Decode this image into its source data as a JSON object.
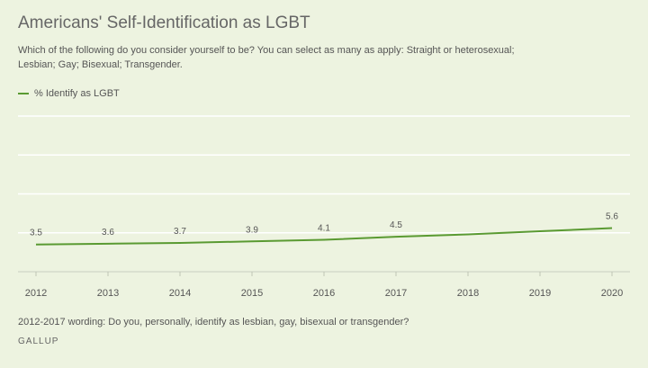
{
  "title": "Americans' Self-Identification as LGBT",
  "subtitle": "Which of the following do you consider yourself to be? You can select as many as apply: Straight or heterosexual; Lesbian; Gay; Bisexual; Transgender.",
  "note": "2012-2017 wording: Do you, personally, identify as lesbian, gay, bisexual or transgender?",
  "source": "GALLUP",
  "colors": {
    "line": "#5a9a32",
    "grid": "#ffffff",
    "text": "#555555"
  },
  "chart_data": {
    "type": "line",
    "x": [
      "2012",
      "2013",
      "2014",
      "2015",
      "2016",
      "2017",
      "2018",
      "2019",
      "2020"
    ],
    "series": [
      {
        "name": "% Identify as LGBT",
        "values": [
          3.5,
          3.6,
          3.7,
          3.9,
          4.1,
          4.5,
          4.8,
          5.2,
          5.6
        ],
        "labels": [
          "3.5",
          "3.6",
          "3.7",
          "3.9",
          "4.1",
          "4.5",
          "",
          "",
          "5.6"
        ]
      }
    ],
    "ylim": [
      0,
      20
    ],
    "grid": true,
    "legend": "top-left"
  }
}
